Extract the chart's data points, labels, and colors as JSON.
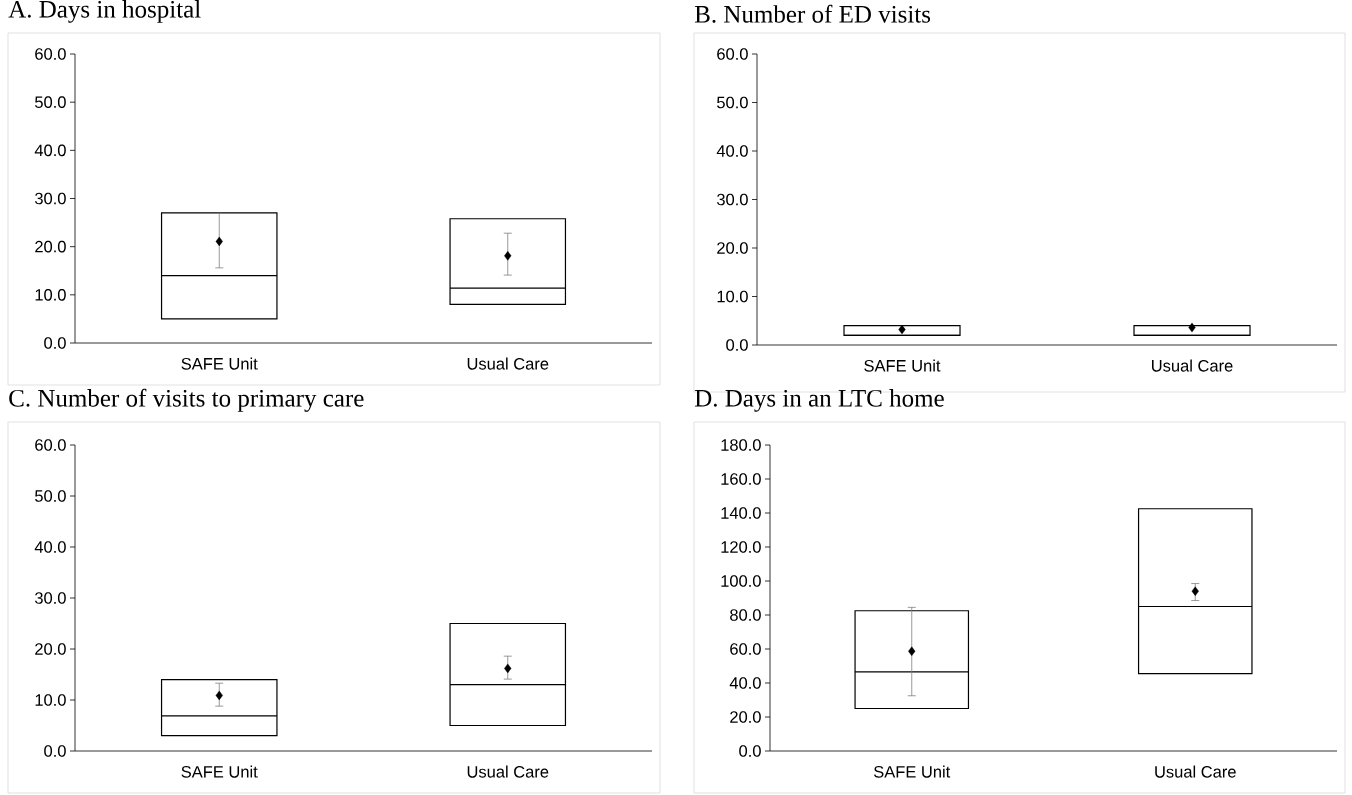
{
  "chart_data": [
    {
      "type": "box",
      "title": "A. Days in hospital",
      "categories": [
        "SAFE Unit",
        "Usual Care"
      ],
      "boxes": [
        {
          "low": 5,
          "q1": 5,
          "median": 14,
          "q3": 27,
          "high": 27
        },
        {
          "low": 8,
          "q1": 8,
          "median": 11.4,
          "q3": 25.8,
          "high": 25.8
        }
      ],
      "series": [
        {
          "type": "scatter",
          "x": [
            "SAFE Unit",
            "Usual Care"
          ],
          "values": [
            21.1,
            18.1
          ],
          "errors": [
            [
              15.6,
              26.9
            ],
            [
              14.1,
              22.8
            ]
          ],
          "color": "#000000"
        }
      ],
      "marker": "diamond",
      "ylim": [
        0,
        60
      ],
      "yticks": [
        {
          "value": 0,
          "label": "0.0"
        },
        {
          "value": 10,
          "label": "10.0"
        },
        {
          "value": 20,
          "label": "20.0"
        },
        {
          "value": 30,
          "label": "30.0"
        },
        {
          "value": 40,
          "label": "40.0"
        },
        {
          "value": 50,
          "label": "50.0"
        },
        {
          "value": 60,
          "label": "60.0"
        }
      ]
    },
    {
      "type": "box",
      "title": "B. Number of ED visits",
      "categories": [
        "SAFE Unit",
        "Usual Care"
      ],
      "boxes": [
        {
          "low": 2,
          "q1": 2,
          "median": 2,
          "q3": 4,
          "high": 4
        },
        {
          "low": 2,
          "q1": 2,
          "median": 2,
          "q3": 4,
          "high": 4
        }
      ],
      "series": [
        {
          "type": "scatter",
          "x": [
            "SAFE Unit",
            "Usual Care"
          ],
          "values": [
            3.2,
            3.6
          ],
          "color": "#000000"
        }
      ],
      "marker": "diamond",
      "ylim": [
        0,
        60
      ],
      "yticks": [
        {
          "value": 0,
          "label": "0.0"
        },
        {
          "value": 10,
          "label": "10.0"
        },
        {
          "value": 20,
          "label": "20.0"
        },
        {
          "value": 30,
          "label": "30.0"
        },
        {
          "value": 40,
          "label": "40.0"
        },
        {
          "value": 50,
          "label": "50.0"
        },
        {
          "value": 60,
          "label": "60.0"
        }
      ]
    },
    {
      "type": "box",
      "title": "C. Number of visits to primary care",
      "categories": [
        "SAFE Unit",
        "Usual Care"
      ],
      "boxes": [
        {
          "low": 3,
          "q1": 3,
          "median": 6.9,
          "q3": 14,
          "high": 14
        },
        {
          "low": 5,
          "q1": 5,
          "median": 13,
          "q3": 25,
          "high": 25
        }
      ],
      "series": [
        {
          "type": "scatter",
          "x": [
            "SAFE Unit",
            "Usual Care"
          ],
          "values": [
            10.9,
            16.2
          ],
          "errors": [
            [
              8.8,
              13.3
            ],
            [
              14.1,
              18.6
            ]
          ],
          "color": "#000000"
        }
      ],
      "marker": "diamond",
      "ylim": [
        0,
        60
      ],
      "yticks": [
        {
          "value": 0,
          "label": "0.0"
        },
        {
          "value": 10,
          "label": "10.0"
        },
        {
          "value": 20,
          "label": "20.0"
        },
        {
          "value": 30,
          "label": "30.0"
        },
        {
          "value": 40,
          "label": "40.0"
        },
        {
          "value": 50,
          "label": "50.0"
        },
        {
          "value": 60,
          "label": "60.0"
        }
      ]
    },
    {
      "type": "box",
      "title": "D. Days in an LTC home",
      "categories": [
        "SAFE Unit",
        "Usual Care"
      ],
      "boxes": [
        {
          "low": 25,
          "q1": 25,
          "median": 46.5,
          "q3": 82.5,
          "high": 82.5
        },
        {
          "low": 45.5,
          "q1": 45.5,
          "median": 85,
          "q3": 142.5,
          "high": 142.5
        }
      ],
      "series": [
        {
          "type": "scatter",
          "x": [
            "SAFE Unit",
            "Usual Care"
          ],
          "values": [
            58.7,
            94
          ],
          "errors": [
            [
              32.5,
              84.5
            ],
            [
              88.5,
              98.5
            ]
          ],
          "color": "#000000"
        }
      ],
      "marker": "diamond",
      "ylim": [
        0,
        180
      ],
      "yticks": [
        {
          "value": 0,
          "label": "0.0"
        },
        {
          "value": 20,
          "label": "20.0"
        },
        {
          "value": 40,
          "label": "40.0"
        },
        {
          "value": 60,
          "label": "60.0"
        },
        {
          "value": 80,
          "label": "80.0"
        },
        {
          "value": 100,
          "label": "100.0"
        },
        {
          "value": 120,
          "label": "120.0"
        },
        {
          "value": 140,
          "label": "140.0"
        },
        {
          "value": 160,
          "label": "160.0"
        },
        {
          "value": 180,
          "label": "180.0"
        }
      ]
    }
  ]
}
